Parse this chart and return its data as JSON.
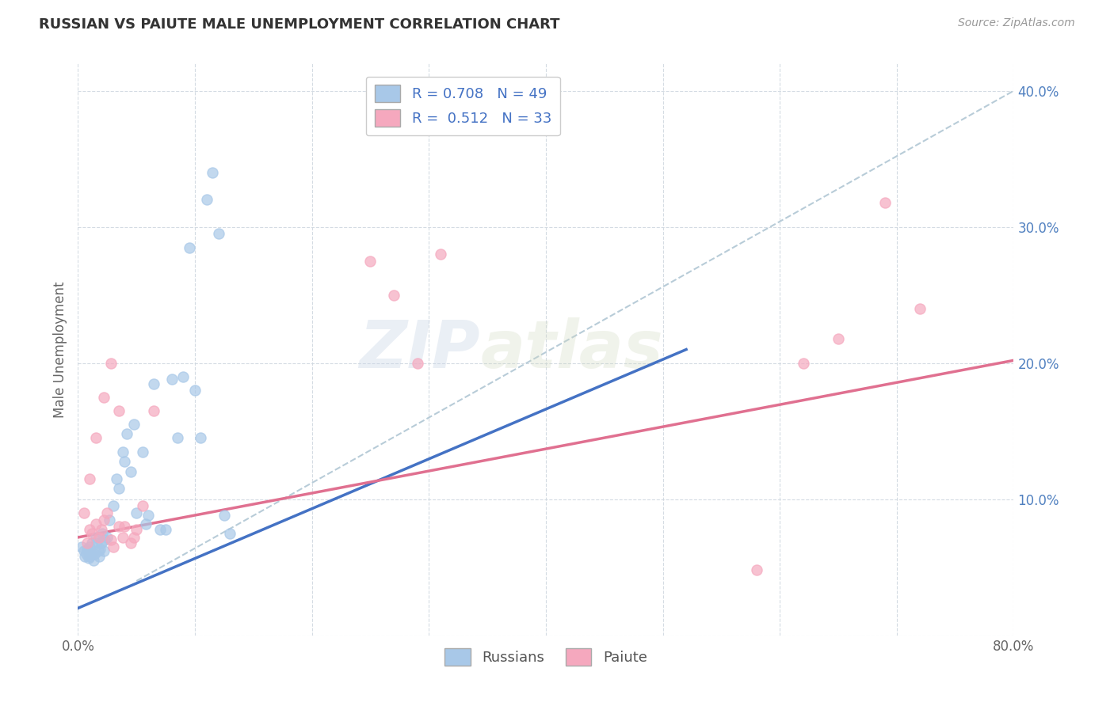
{
  "title": "RUSSIAN VS PAIUTE MALE UNEMPLOYMENT CORRELATION CHART",
  "source": "Source: ZipAtlas.com",
  "ylabel": "Male Unemployment",
  "xlim": [
    0.0,
    0.8
  ],
  "ylim": [
    0.0,
    0.42
  ],
  "xticks": [
    0.0,
    0.1,
    0.2,
    0.3,
    0.4,
    0.5,
    0.6,
    0.7,
    0.8
  ],
  "xticklabels": [
    "0.0%",
    "",
    "",
    "",
    "",
    "",
    "",
    "",
    "80.0%"
  ],
  "yticks": [
    0.0,
    0.1,
    0.2,
    0.3,
    0.4
  ],
  "yticklabels": [
    "",
    "10.0%",
    "20.0%",
    "30.0%",
    "40.0%"
  ],
  "russian_color": "#a8c8e8",
  "paiute_color": "#f5a8be",
  "russian_R": 0.708,
  "russian_N": 49,
  "paiute_R": 0.512,
  "paiute_N": 33,
  "blue_line_color": "#4472c4",
  "pink_line_color": "#e07090",
  "diagonal_color": "#b8ccd8",
  "watermark_zip": "ZIP",
  "watermark_atlas": "atlas",
  "russians_x": [
    0.003,
    0.005,
    0.006,
    0.007,
    0.008,
    0.009,
    0.01,
    0.01,
    0.011,
    0.012,
    0.013,
    0.014,
    0.015,
    0.016,
    0.017,
    0.018,
    0.019,
    0.02,
    0.021,
    0.022,
    0.023,
    0.025,
    0.027,
    0.03,
    0.033,
    0.035,
    0.038,
    0.04,
    0.042,
    0.045,
    0.048,
    0.05,
    0.055,
    0.058,
    0.06,
    0.065,
    0.07,
    0.075,
    0.08,
    0.085,
    0.09,
    0.095,
    0.1,
    0.105,
    0.11,
    0.115,
    0.12,
    0.125,
    0.13
  ],
  "russians_y": [
    0.065,
    0.062,
    0.058,
    0.06,
    0.063,
    0.057,
    0.058,
    0.065,
    0.06,
    0.068,
    0.055,
    0.06,
    0.072,
    0.068,
    0.062,
    0.058,
    0.063,
    0.068,
    0.075,
    0.062,
    0.07,
    0.072,
    0.085,
    0.095,
    0.115,
    0.108,
    0.135,
    0.128,
    0.148,
    0.12,
    0.155,
    0.09,
    0.135,
    0.082,
    0.088,
    0.185,
    0.078,
    0.078,
    0.188,
    0.145,
    0.19,
    0.285,
    0.18,
    0.145,
    0.32,
    0.34,
    0.295,
    0.088,
    0.075
  ],
  "paiutes_x": [
    0.005,
    0.008,
    0.01,
    0.012,
    0.015,
    0.018,
    0.02,
    0.022,
    0.025,
    0.028,
    0.03,
    0.035,
    0.038,
    0.04,
    0.045,
    0.048,
    0.05,
    0.055,
    0.01,
    0.015,
    0.022,
    0.028,
    0.035,
    0.065,
    0.25,
    0.27,
    0.29,
    0.31,
    0.58,
    0.62,
    0.65,
    0.69,
    0.72
  ],
  "paiutes_y": [
    0.09,
    0.068,
    0.078,
    0.075,
    0.082,
    0.072,
    0.078,
    0.085,
    0.09,
    0.07,
    0.065,
    0.08,
    0.072,
    0.08,
    0.068,
    0.072,
    0.078,
    0.095,
    0.115,
    0.145,
    0.175,
    0.2,
    0.165,
    0.165,
    0.275,
    0.25,
    0.2,
    0.28,
    0.048,
    0.2,
    0.218,
    0.318,
    0.24
  ],
  "blue_line_x": [
    0.0,
    0.52
  ],
  "blue_line_y": [
    0.02,
    0.21
  ],
  "pink_line_x": [
    0.0,
    0.8
  ],
  "pink_line_y": [
    0.072,
    0.202
  ],
  "diag_line_x": [
    0.05,
    0.8
  ],
  "diag_line_y": [
    0.04,
    0.4
  ]
}
